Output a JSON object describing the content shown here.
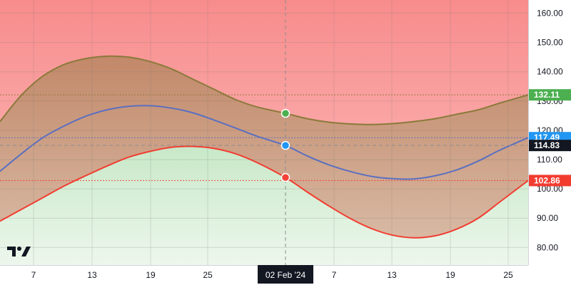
{
  "chart_data": {
    "type": "area",
    "x_ticks": [
      "7",
      "13",
      "19",
      "25",
      "7",
      "13",
      "19",
      "25"
    ],
    "crosshair_label": "02 Feb '24",
    "y_ticks": [
      "160.00",
      "150.00",
      "140.00",
      "130.00",
      "120.00",
      "110.00",
      "100.00",
      "90.00",
      "80.00"
    ],
    "ylim": [
      74,
      164.5
    ],
    "grid": true,
    "series": [
      {
        "key": "upper",
        "color": "#8a7a3a",
        "marker_color": "#4caf50",
        "crosshair_value": 125.8,
        "last_value": "132.11",
        "points": [
          [
            0,
            123
          ],
          [
            30,
            132
          ],
          [
            60,
            138.5
          ],
          [
            90,
            142.5
          ],
          [
            120,
            144.5
          ],
          [
            150,
            145.3
          ],
          [
            180,
            145
          ],
          [
            210,
            143.5
          ],
          [
            240,
            141
          ],
          [
            270,
            137.5
          ],
          [
            300,
            134
          ],
          [
            330,
            130.5
          ],
          [
            360,
            128
          ],
          [
            400,
            125.8
          ],
          [
            430,
            124
          ],
          [
            460,
            122.8
          ],
          [
            490,
            122.2
          ],
          [
            520,
            122
          ],
          [
            550,
            122.3
          ],
          [
            580,
            123
          ],
          [
            610,
            124
          ],
          [
            640,
            125.5
          ],
          [
            670,
            127
          ],
          [
            700,
            129.3
          ],
          [
            740,
            132.11
          ]
        ]
      },
      {
        "key": "middle",
        "color": "#5b6fc0",
        "marker_color": "#2196f3",
        "crosshair_value": 114.83,
        "last_value": "117.49",
        "points": [
          [
            0,
            106
          ],
          [
            30,
            112
          ],
          [
            60,
            117.5
          ],
          [
            90,
            121.5
          ],
          [
            120,
            124.8
          ],
          [
            150,
            127
          ],
          [
            180,
            128.2
          ],
          [
            210,
            128.4
          ],
          [
            240,
            127.6
          ],
          [
            270,
            126
          ],
          [
            300,
            123.5
          ],
          [
            330,
            120.8
          ],
          [
            360,
            118
          ],
          [
            400,
            114.83
          ],
          [
            430,
            111.3
          ],
          [
            460,
            108.3
          ],
          [
            490,
            106
          ],
          [
            520,
            104.3
          ],
          [
            550,
            103.5
          ],
          [
            580,
            103.4
          ],
          [
            610,
            104.5
          ],
          [
            640,
            106.5
          ],
          [
            670,
            109.5
          ],
          [
            700,
            113.2
          ],
          [
            740,
            117.49
          ]
        ]
      },
      {
        "key": "lower",
        "color": "#f23c30",
        "marker_color": "#f44336",
        "crosshair_value": 103.9,
        "last_value": "102.86",
        "points": [
          [
            0,
            89
          ],
          [
            30,
            93
          ],
          [
            60,
            97
          ],
          [
            90,
            101
          ],
          [
            120,
            104.5
          ],
          [
            150,
            107.8
          ],
          [
            180,
            110.8
          ],
          [
            210,
            112.8
          ],
          [
            240,
            114.2
          ],
          [
            270,
            114.5
          ],
          [
            300,
            113.8
          ],
          [
            330,
            112
          ],
          [
            360,
            109
          ],
          [
            400,
            103.9
          ],
          [
            430,
            99
          ],
          [
            460,
            94.3
          ],
          [
            490,
            90
          ],
          [
            520,
            86.5
          ],
          [
            550,
            84.2
          ],
          [
            580,
            83.3
          ],
          [
            610,
            84
          ],
          [
            640,
            86.3
          ],
          [
            670,
            90
          ],
          [
            700,
            95.5
          ],
          [
            740,
            102.86
          ]
        ]
      }
    ],
    "crosshair_badge": "114.83",
    "colors": {
      "bg_top": "#f88c8c",
      "bg_mid": "#fcc0c0",
      "band_top": "#c28869",
      "band_bottom": "#d8b9a3",
      "green_top": "#c8e8c8",
      "green_bottom": "#edf7ed",
      "axis_badge_dark": "#131722",
      "upper_badge": "#4caf50",
      "middle_badge": "#2196f3",
      "lower_badge": "#f23c30"
    }
  },
  "logo": {
    "icon": "tradingview-logo-icon"
  }
}
